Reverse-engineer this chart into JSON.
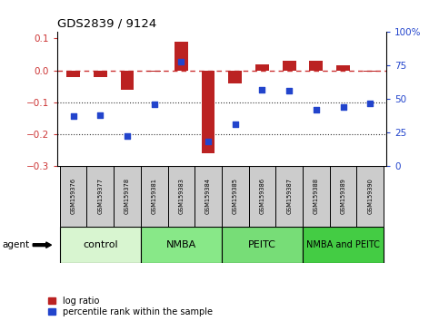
{
  "title": "GDS2839 / 9124",
  "samples": [
    "GSM159376",
    "GSM159377",
    "GSM159378",
    "GSM159381",
    "GSM159383",
    "GSM159384",
    "GSM159385",
    "GSM159386",
    "GSM159387",
    "GSM159388",
    "GSM159389",
    "GSM159390"
  ],
  "log_ratio": [
    -0.02,
    -0.02,
    -0.06,
    -0.005,
    0.09,
    -0.26,
    -0.04,
    0.02,
    0.03,
    0.03,
    0.015,
    -0.005
  ],
  "percentile_rank": [
    37,
    38,
    22,
    46,
    78,
    18,
    31,
    57,
    56,
    42,
    44,
    47
  ],
  "bar_color": "#bb2222",
  "dot_color": "#2244cc",
  "dashed_line_color": "#cc3333",
  "dotted_line_color": "#333333",
  "ylim_left": [
    -0.3,
    0.12
  ],
  "ylim_right": [
    0,
    100
  ],
  "yticks_left": [
    0.1,
    0.0,
    -0.1,
    -0.2,
    -0.3
  ],
  "yticks_right": [
    100,
    75,
    50,
    25,
    0
  ],
  "group_info": [
    {
      "label": "control",
      "start": 0,
      "end": 3,
      "color": "#d8f5d0",
      "fontsize": 8
    },
    {
      "label": "NMBA",
      "start": 3,
      "end": 6,
      "color": "#88e888",
      "fontsize": 8
    },
    {
      "label": "PEITC",
      "start": 6,
      "end": 9,
      "color": "#77dd77",
      "fontsize": 8
    },
    {
      "label": "NMBA and PEITC",
      "start": 9,
      "end": 12,
      "color": "#44cc44",
      "fontsize": 7
    }
  ],
  "legend_bar_label": "log ratio",
  "legend_dot_label": "percentile rank within the sample",
  "agent_label": "agent",
  "bar_width": 0.5,
  "sample_box_color": "#cccccc",
  "left_tick_color": "#cc3333",
  "right_tick_color": "#2244cc"
}
